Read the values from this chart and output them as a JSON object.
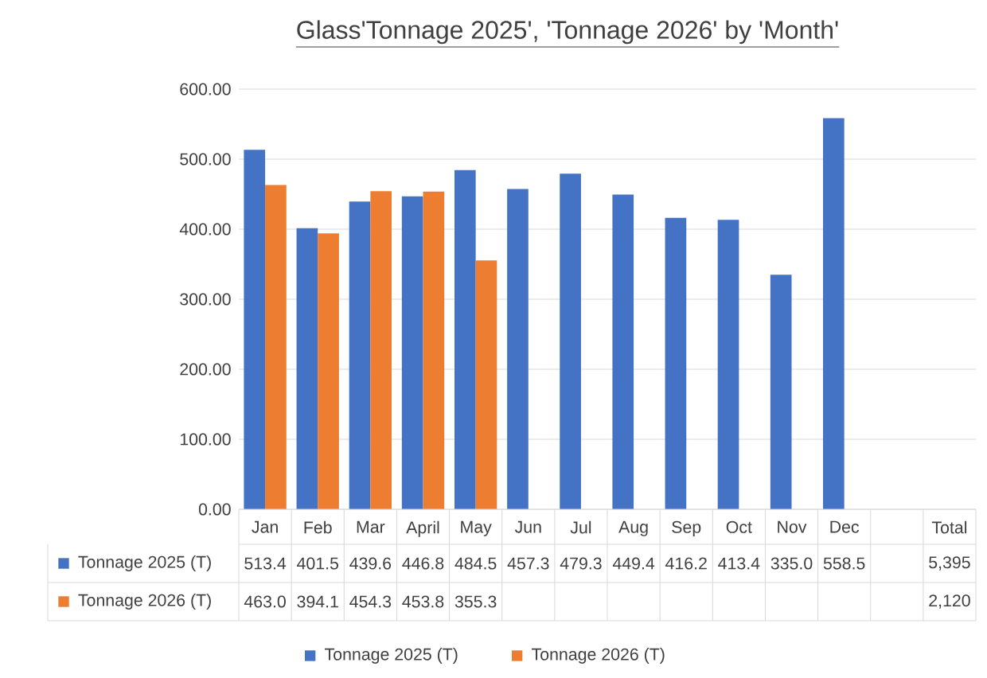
{
  "chart_data": {
    "type": "bar",
    "title": "Glass'Tonnage 2025', 'Tonnage 2026' by 'Month'",
    "categories": [
      "Jan",
      "Feb",
      "Mar",
      "April",
      "May",
      "Jun",
      "Jul",
      "Aug",
      "Sep",
      "Oct",
      "Nov",
      "Dec",
      null,
      "Total"
    ],
    "series": [
      {
        "name": "Tonnage 2025 (T)",
        "color": "#4472c4",
        "values": [
          513.4,
          401.5,
          439.6,
          446.8,
          484.5,
          457.3,
          479.3,
          449.4,
          416.2,
          413.4,
          335.0,
          558.5,
          null,
          null
        ],
        "value_labels": [
          "513.4",
          "401.5",
          "439.6",
          "446.8",
          "484.5",
          "457.3",
          "479.3",
          "449.4",
          "416.2",
          "413.4",
          "335.0",
          "558.5",
          null,
          "5,395"
        ]
      },
      {
        "name": "Tonnage 2026 (T)",
        "color": "#ed7d31",
        "values": [
          463.0,
          394.1,
          454.3,
          453.8,
          355.3,
          null,
          null,
          null,
          null,
          null,
          null,
          null,
          null,
          null
        ],
        "value_labels": [
          "463.0",
          "394.1",
          "454.3",
          "453.8",
          "355.3",
          null,
          null,
          null,
          null,
          null,
          null,
          null,
          null,
          "2,120"
        ]
      }
    ],
    "ylim": [
      0,
      600
    ],
    "yticks": [
      {
        "value": 0,
        "label": "0.00"
      },
      {
        "value": 100,
        "label": "100.00"
      },
      {
        "value": 200,
        "label": "200.00"
      },
      {
        "value": 300,
        "label": "300.00"
      },
      {
        "value": 400,
        "label": "400.00"
      },
      {
        "value": 500,
        "label": "500.00"
      },
      {
        "value": 600,
        "label": "600.00"
      }
    ],
    "grid": "y",
    "legend": "bottom"
  }
}
